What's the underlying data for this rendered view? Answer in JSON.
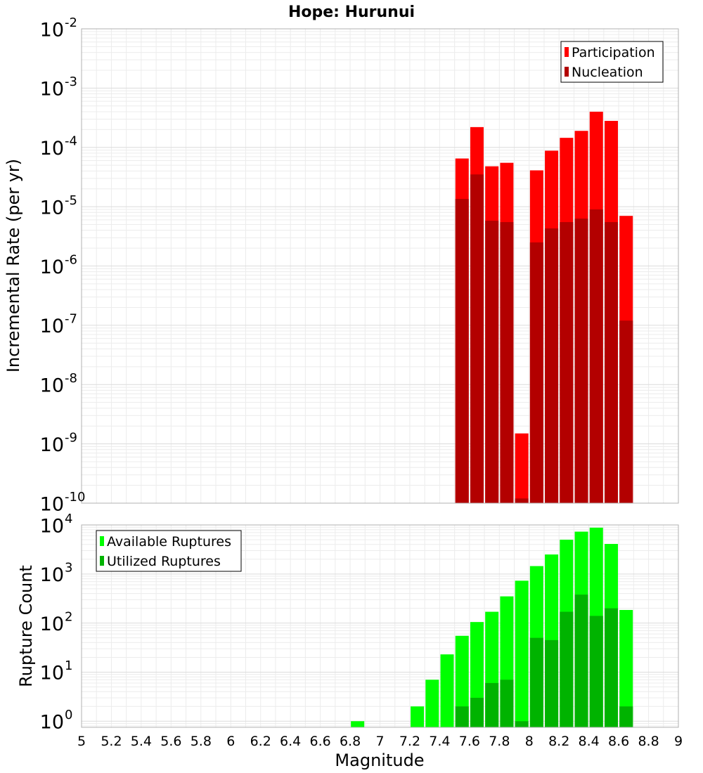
{
  "chart_data": [
    {
      "type": "bar",
      "title": "Hope: Hurunui",
      "xlabel": "",
      "ylabel": "Incremental Rate (per yr)",
      "yscale": "log",
      "ylim": [
        1e-10,
        0.01
      ],
      "xlim": [
        5,
        9
      ],
      "bin_width": 0.1,
      "grid": true,
      "legend_position": "top-right",
      "y_ticks": [
        {
          "value": 1e-10,
          "base": "10",
          "exp": "-10"
        },
        {
          "value": 1e-09,
          "base": "10",
          "exp": "-9"
        },
        {
          "value": 1e-08,
          "base": "10",
          "exp": "-8"
        },
        {
          "value": 1e-07,
          "base": "10",
          "exp": "-7"
        },
        {
          "value": 1e-06,
          "base": "10",
          "exp": "-6"
        },
        {
          "value": 1e-05,
          "base": "10",
          "exp": "-5"
        },
        {
          "value": 0.0001,
          "base": "10",
          "exp": "-4"
        },
        {
          "value": 0.001,
          "base": "10",
          "exp": "-3"
        },
        {
          "value": 0.01,
          "base": "10",
          "exp": "-2"
        }
      ],
      "x": [
        7.55,
        7.65,
        7.75,
        7.85,
        7.95,
        8.05,
        8.15,
        8.25,
        8.35,
        8.45,
        8.55,
        8.65
      ],
      "series": [
        {
          "name": "Participation",
          "color": "#ff0000",
          "values": [
            6.5e-05,
            0.00022,
            4.8e-05,
            5.5e-05,
            1.5e-09,
            4.1e-05,
            8.8e-05,
            0.000145,
            0.00019,
            0.0004,
            0.00028,
            7e-06
          ]
        },
        {
          "name": "Nucleation",
          "color": "#b30000",
          "values": [
            1.35e-05,
            3.5e-05,
            5.8e-06,
            5.5e-06,
            1.2e-10,
            2.5e-06,
            4.3e-06,
            5.5e-06,
            6.3e-06,
            9e-06,
            5.5e-06,
            1.2e-07
          ]
        }
      ]
    },
    {
      "type": "bar",
      "title": "",
      "xlabel": "Magnitude",
      "ylabel": "Rupture Count",
      "yscale": "log",
      "ylim": [
        0.75,
        10000
      ],
      "xlim": [
        5,
        9
      ],
      "bin_width": 0.1,
      "grid": true,
      "legend_position": "top-left",
      "x_ticks": [
        "5",
        "5.2",
        "5.4",
        "5.6",
        "5.8",
        "6",
        "6.2",
        "6.4",
        "6.6",
        "6.8",
        "7",
        "7.2",
        "7.4",
        "7.6",
        "7.8",
        "8",
        "8.2",
        "8.4",
        "8.6",
        "8.8",
        "9"
      ],
      "y_ticks": [
        {
          "value": 1,
          "base": "10",
          "exp": "0"
        },
        {
          "value": 10,
          "base": "10",
          "exp": "1"
        },
        {
          "value": 100,
          "base": "10",
          "exp": "2"
        },
        {
          "value": 1000,
          "base": "10",
          "exp": "3"
        },
        {
          "value": 10000,
          "base": "10",
          "exp": "4"
        }
      ],
      "series": [
        {
          "name": "Available Ruptures",
          "color": "#00ff00",
          "x": [
            6.85,
            7.25,
            7.35,
            7.45,
            7.55,
            7.65,
            7.75,
            7.85,
            7.95,
            8.05,
            8.15,
            8.25,
            8.35,
            8.45,
            8.55,
            8.65
          ],
          "values": [
            1,
            2,
            7,
            23,
            55,
            105,
            170,
            350,
            730,
            1450,
            2500,
            5000,
            7300,
            8800,
            4100,
            185
          ]
        },
        {
          "name": "Utilized Ruptures",
          "color": "#00b300",
          "x": [
            7.55,
            7.65,
            7.75,
            7.85,
            7.95,
            8.05,
            8.15,
            8.25,
            8.35,
            8.45,
            8.55,
            8.65
          ],
          "values": [
            2,
            3,
            6,
            7,
            1,
            50,
            45,
            170,
            380,
            140,
            200,
            2
          ]
        }
      ]
    }
  ]
}
